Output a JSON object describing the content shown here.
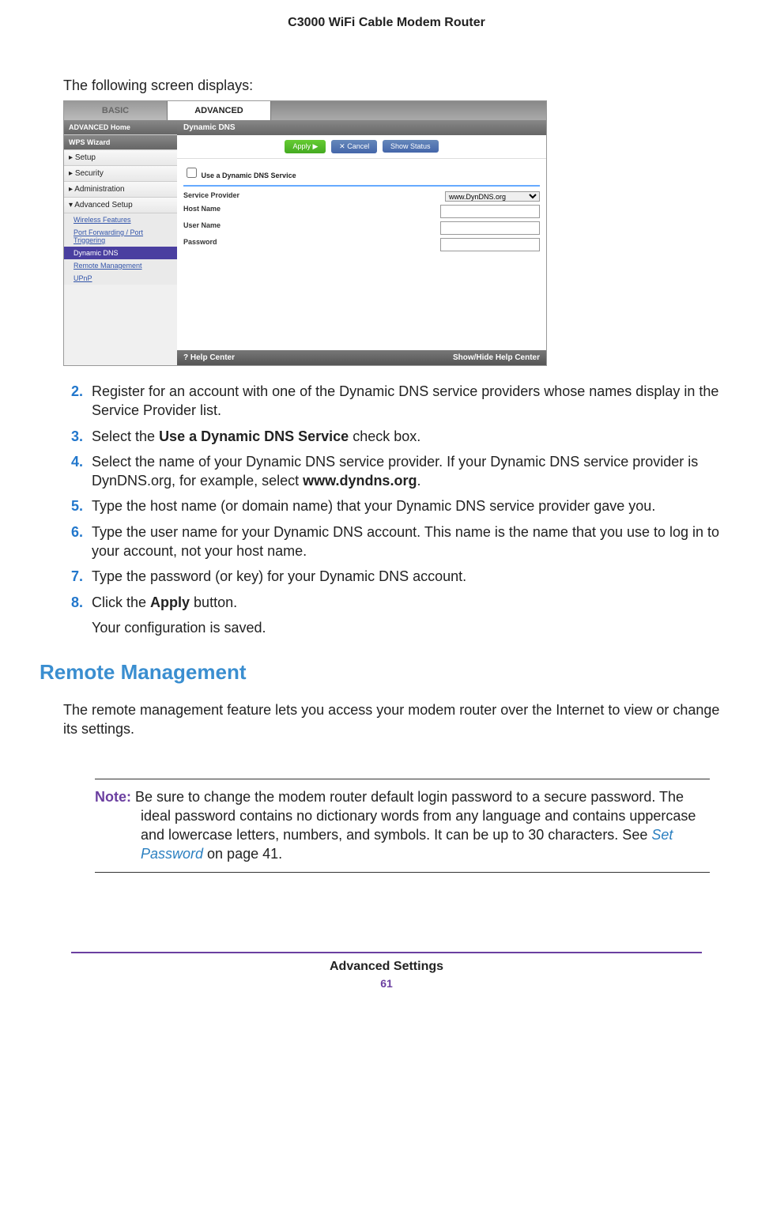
{
  "header": {
    "title": "C3000 WiFi Cable Modem Router"
  },
  "intro": "The following screen displays:",
  "screenshot": {
    "tabs": {
      "basic": "BASIC",
      "advanced": "ADVANCED"
    },
    "sidebar": {
      "adv_home": "ADVANCED Home",
      "wps": "WPS Wizard",
      "setup": "Setup",
      "security": "Security",
      "admin": "Administration",
      "adv_setup": "Advanced Setup",
      "sub": {
        "wireless": "Wireless Features",
        "portfwd": "Port Forwarding / Port Triggering",
        "ddns": "Dynamic DNS",
        "remote": "Remote Management",
        "upnp": "UPnP"
      }
    },
    "panel": {
      "title": "Dynamic DNS",
      "apply": "Apply ▶",
      "cancel": "✕ Cancel",
      "status": "Show Status",
      "checkbox": "Use a Dynamic DNS Service",
      "provider_label": "Service Provider",
      "provider_value": "www.DynDNS.org",
      "host_label": "Host Name",
      "user_label": "User Name",
      "pass_label": "Password"
    },
    "help": {
      "left": "? Help Center",
      "right": "Show/Hide Help Center"
    }
  },
  "steps": {
    "s2": "Register for an account with one of the Dynamic DNS service providers whose names display in the Service Provider list.",
    "s3a": "Select the ",
    "s3b": "Use a Dynamic DNS Service",
    "s3c": " check box.",
    "s4a": "Select the name of your Dynamic DNS service provider. If your Dynamic DNS service provider is DynDNS.org, for example, select ",
    "s4b": "www.dyndns.org",
    "s4c": ".",
    "s5": "Type the host name (or domain name) that your Dynamic DNS service provider gave you.",
    "s6": "Type the user name for your Dynamic DNS account. This name is the name that you use to log in to your account, not your host name.",
    "s7": "Type the password (or key) for your Dynamic DNS account.",
    "s8a": "Click the ",
    "s8b": "Apply",
    "s8c": " button."
  },
  "after": "Your configuration is saved.",
  "section_title": "Remote Management",
  "body": "The remote management feature lets you access your modem router over the Internet to view or change its settings.",
  "note": {
    "label": "Note:",
    "text1": " Be sure to change the modem router default login password to a secure password. The ideal password contains no dictionary words from any language and contains uppercase and lowercase letters, numbers, and symbols. It can be up to 30 characters. See ",
    "link": "Set Password",
    "text2": " on page 41."
  },
  "footer": {
    "title": "Advanced Settings",
    "page": "61"
  }
}
